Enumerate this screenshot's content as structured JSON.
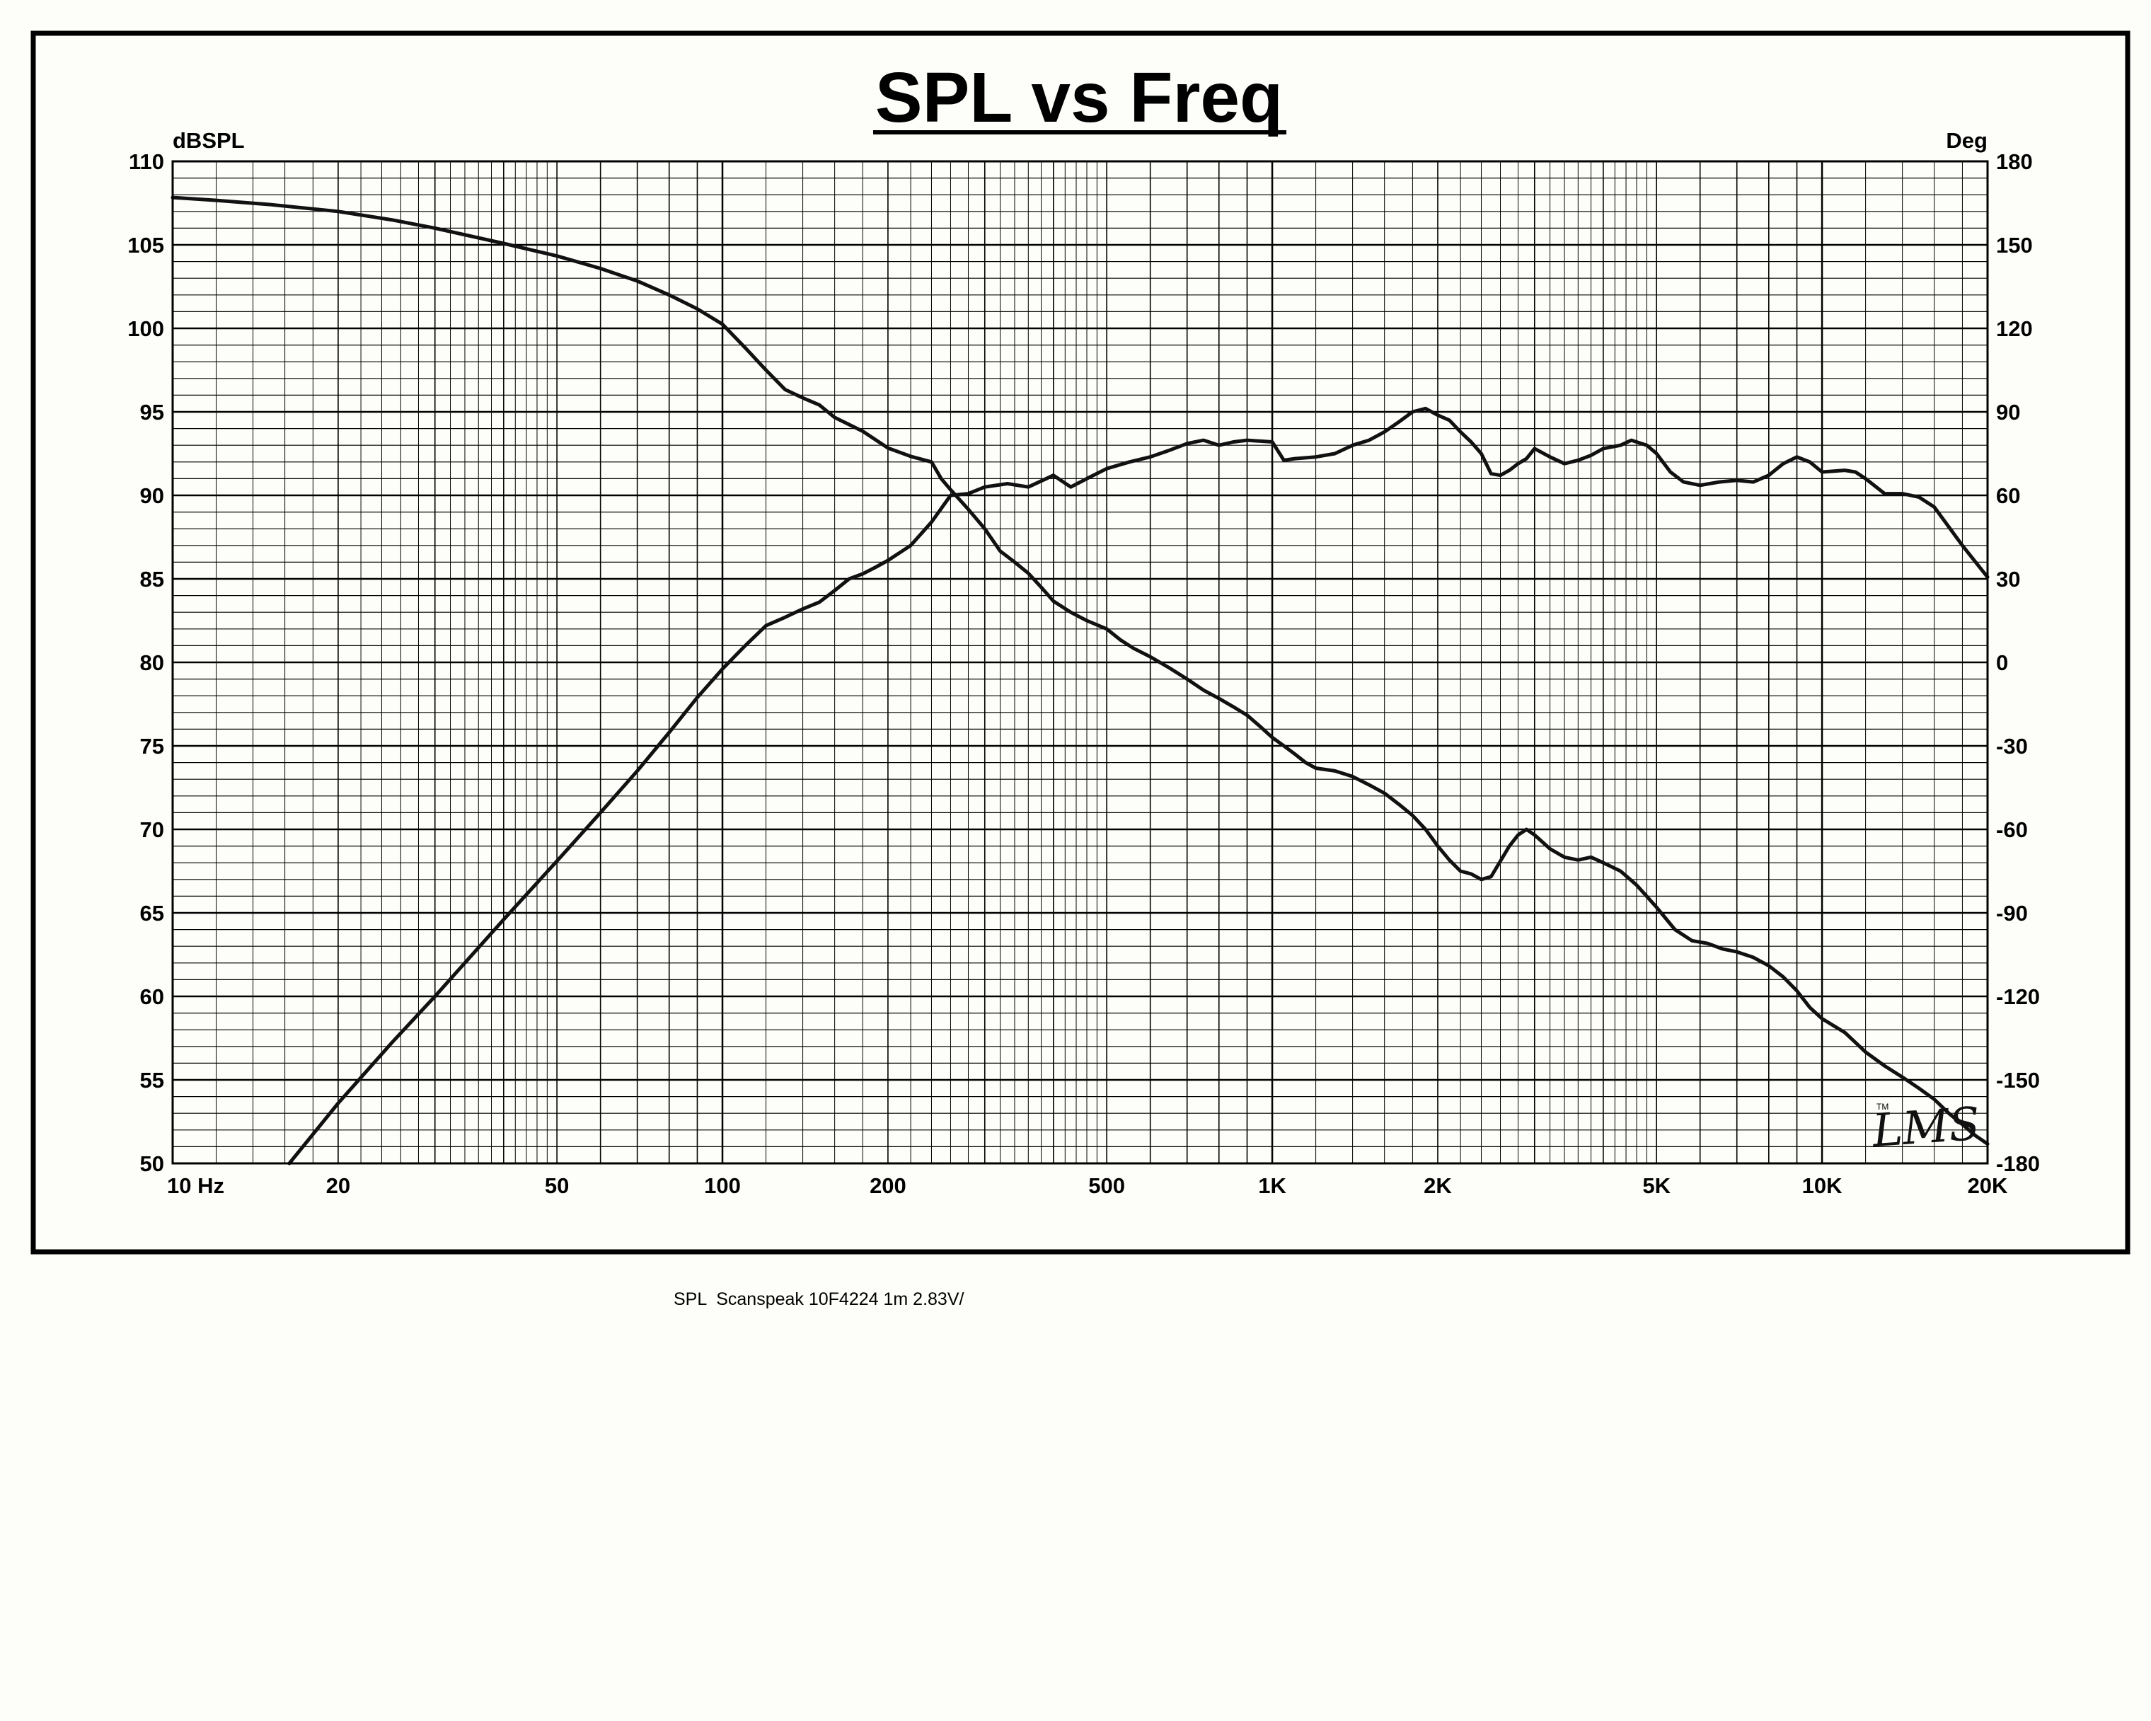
{
  "chart_data": {
    "type": "line",
    "title": "SPL vs Freq",
    "xscale": "log",
    "xlim": [
      10,
      20000
    ],
    "x_ticks": [
      {
        "value": 10,
        "label": "10  Hz"
      },
      {
        "value": 20,
        "label": "20"
      },
      {
        "value": 50,
        "label": "50"
      },
      {
        "value": 100,
        "label": "100"
      },
      {
        "value": 200,
        "label": "200"
      },
      {
        "value": 500,
        "label": "500"
      },
      {
        "value": 1000,
        "label": "1K"
      },
      {
        "value": 2000,
        "label": "2K"
      },
      {
        "value": 5000,
        "label": "5K"
      },
      {
        "value": 10000,
        "label": "10K"
      },
      {
        "value": 20000,
        "label": "20K"
      }
    ],
    "y_left": {
      "label": "dBSPL",
      "range": [
        50,
        110
      ],
      "ticks": [
        110,
        105,
        100,
        95,
        90,
        85,
        80,
        75,
        70,
        65,
        60,
        55,
        50
      ]
    },
    "y_right": {
      "label": "Deg",
      "range": [
        -180,
        180
      ],
      "ticks": [
        180,
        150,
        120,
        90,
        60,
        30,
        0,
        -30,
        -60,
        -90,
        -120,
        -150,
        -180
      ]
    },
    "grid": true,
    "series": [
      {
        "axis": "left",
        "points": [
          [
            16.3,
            50
          ],
          [
            20,
            53.6
          ],
          [
            25,
            57.2
          ],
          [
            30,
            60
          ],
          [
            40,
            64.6
          ],
          [
            50,
            68.1
          ],
          [
            60,
            71
          ],
          [
            70,
            73.5
          ],
          [
            80,
            75.8
          ],
          [
            90,
            77.9
          ],
          [
            100,
            79.6
          ],
          [
            110,
            81
          ],
          [
            120,
            82.2
          ],
          [
            130,
            82.7
          ],
          [
            140,
            83.2
          ],
          [
            150,
            83.6
          ],
          [
            160,
            84.3
          ],
          [
            170,
            85
          ],
          [
            180,
            85.3
          ],
          [
            190,
            85.7
          ],
          [
            200,
            86.1
          ],
          [
            220,
            87
          ],
          [
            240,
            88.4
          ],
          [
            260,
            90
          ],
          [
            280,
            90.1
          ],
          [
            300,
            90.5
          ],
          [
            330,
            90.7
          ],
          [
            360,
            90.5
          ],
          [
            400,
            91.2
          ],
          [
            430,
            90.5
          ],
          [
            460,
            91
          ],
          [
            500,
            91.6
          ],
          [
            550,
            92
          ],
          [
            600,
            92.3
          ],
          [
            650,
            92.7
          ],
          [
            700,
            93.1
          ],
          [
            750,
            93.3
          ],
          [
            800,
            93
          ],
          [
            850,
            93.2
          ],
          [
            900,
            93.3
          ],
          [
            1000,
            93.2
          ],
          [
            1050,
            92.1
          ],
          [
            1100,
            92.2
          ],
          [
            1200,
            92.3
          ],
          [
            1300,
            92.5
          ],
          [
            1400,
            93
          ],
          [
            1500,
            93.3
          ],
          [
            1600,
            93.8
          ],
          [
            1700,
            94.4
          ],
          [
            1800,
            95
          ],
          [
            1900,
            95.2
          ],
          [
            2000,
            94.8
          ],
          [
            2100,
            94.5
          ],
          [
            2200,
            93.8
          ],
          [
            2300,
            93.2
          ],
          [
            2400,
            92.5
          ],
          [
            2500,
            91.3
          ],
          [
            2600,
            91.2
          ],
          [
            2700,
            91.5
          ],
          [
            2800,
            91.9
          ],
          [
            2900,
            92.2
          ],
          [
            3000,
            92.8
          ],
          [
            3200,
            92.3
          ],
          [
            3400,
            91.9
          ],
          [
            3600,
            92.1
          ],
          [
            3800,
            92.4
          ],
          [
            4000,
            92.8
          ],
          [
            4300,
            93
          ],
          [
            4500,
            93.3
          ],
          [
            4800,
            93
          ],
          [
            5000,
            92.5
          ],
          [
            5300,
            91.4
          ],
          [
            5600,
            90.8
          ],
          [
            6000,
            90.6
          ],
          [
            6500,
            90.8
          ],
          [
            7000,
            90.9
          ],
          [
            7500,
            90.8
          ],
          [
            8000,
            91.2
          ],
          [
            8500,
            91.9
          ],
          [
            9000,
            92.3
          ],
          [
            9500,
            92
          ],
          [
            10000,
            91.4
          ],
          [
            11000,
            91.5
          ],
          [
            11500,
            91.4
          ],
          [
            12000,
            91
          ],
          [
            13000,
            90.1
          ],
          [
            14000,
            90.1
          ],
          [
            15000,
            89.9
          ],
          [
            16000,
            89.3
          ],
          [
            18000,
            87
          ],
          [
            20000,
            85.1
          ]
        ]
      },
      {
        "axis": "right",
        "points": [
          [
            10,
            167
          ],
          [
            12,
            166
          ],
          [
            15,
            164.5
          ],
          [
            20,
            162
          ],
          [
            25,
            159
          ],
          [
            30,
            156
          ],
          [
            40,
            150.5
          ],
          [
            50,
            146
          ],
          [
            60,
            141.5
          ],
          [
            70,
            137
          ],
          [
            80,
            132
          ],
          [
            90,
            127
          ],
          [
            100,
            121.5
          ],
          [
            110,
            113
          ],
          [
            120,
            105
          ],
          [
            130,
            98
          ],
          [
            140,
            95
          ],
          [
            150,
            92.5
          ],
          [
            160,
            88
          ],
          [
            180,
            83
          ],
          [
            200,
            77
          ],
          [
            220,
            74
          ],
          [
            240,
            72
          ],
          [
            250,
            66
          ],
          [
            260,
            62
          ],
          [
            280,
            55
          ],
          [
            300,
            48
          ],
          [
            320,
            40
          ],
          [
            340,
            36
          ],
          [
            360,
            32
          ],
          [
            380,
            27
          ],
          [
            400,
            22
          ],
          [
            430,
            18
          ],
          [
            460,
            15
          ],
          [
            500,
            12
          ],
          [
            530,
            8
          ],
          [
            560,
            5
          ],
          [
            600,
            2
          ],
          [
            650,
            -2
          ],
          [
            700,
            -6
          ],
          [
            750,
            -10
          ],
          [
            800,
            -13
          ],
          [
            850,
            -16
          ],
          [
            900,
            -19
          ],
          [
            950,
            -23
          ],
          [
            1000,
            -27
          ],
          [
            1050,
            -30
          ],
          [
            1100,
            -33
          ],
          [
            1150,
            -36
          ],
          [
            1200,
            -38
          ],
          [
            1300,
            -39
          ],
          [
            1400,
            -41
          ],
          [
            1500,
            -44
          ],
          [
            1600,
            -47
          ],
          [
            1700,
            -51
          ],
          [
            1800,
            -55
          ],
          [
            1900,
            -60
          ],
          [
            2000,
            -66
          ],
          [
            2100,
            -71
          ],
          [
            2200,
            -75
          ],
          [
            2300,
            -76
          ],
          [
            2400,
            -78
          ],
          [
            2500,
            -77
          ],
          [
            2700,
            -66
          ],
          [
            2800,
            -62
          ],
          [
            2900,
            -60
          ],
          [
            3000,
            -62
          ],
          [
            3200,
            -67
          ],
          [
            3400,
            -70
          ],
          [
            3600,
            -71
          ],
          [
            3800,
            -70
          ],
          [
            4000,
            -72
          ],
          [
            4300,
            -75
          ],
          [
            4600,
            -80
          ],
          [
            5000,
            -88
          ],
          [
            5400,
            -96
          ],
          [
            5800,
            -100
          ],
          [
            6200,
            -101
          ],
          [
            6600,
            -103
          ],
          [
            7000,
            -104
          ],
          [
            7500,
            -106
          ],
          [
            8000,
            -109
          ],
          [
            8500,
            -113
          ],
          [
            9000,
            -118
          ],
          [
            9500,
            -124
          ],
          [
            10000,
            -128
          ],
          [
            11000,
            -133
          ],
          [
            12000,
            -140
          ],
          [
            13000,
            -145
          ],
          [
            14000,
            -149
          ],
          [
            15000,
            -153
          ],
          [
            16000,
            -157
          ],
          [
            17000,
            -162
          ],
          [
            18000,
            -166
          ],
          [
            19000,
            -170
          ],
          [
            20000,
            -173
          ]
        ]
      }
    ],
    "logo_text": "LMS",
    "caption": "SPL  Scanspeak 10F4224 1m 2.83V/"
  }
}
